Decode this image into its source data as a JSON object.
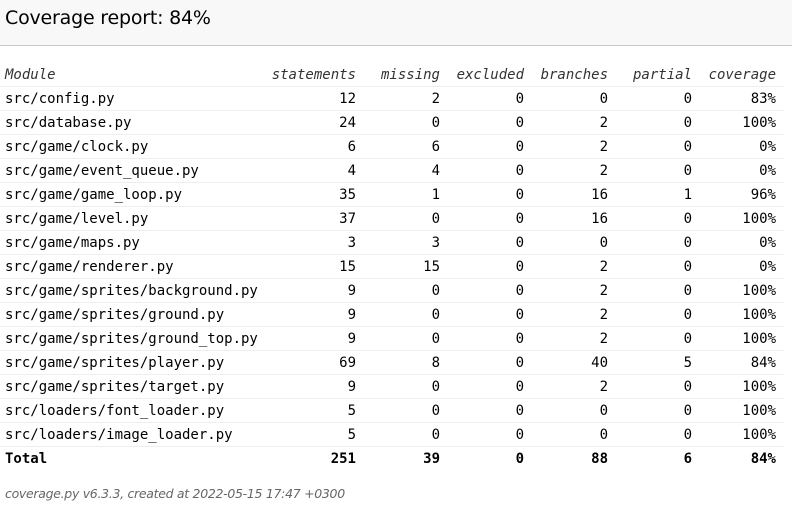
{
  "header": {
    "title": "Coverage report: 84%"
  },
  "table": {
    "columns": [
      "Module",
      "statements",
      "missing",
      "excluded",
      "branches",
      "partial",
      "coverage"
    ],
    "rows": [
      {
        "module": "src/config.py",
        "statements": "12",
        "missing": "2",
        "excluded": "0",
        "branches": "0",
        "partial": "0",
        "coverage": "83%"
      },
      {
        "module": "src/database.py",
        "statements": "24",
        "missing": "0",
        "excluded": "0",
        "branches": "2",
        "partial": "0",
        "coverage": "100%"
      },
      {
        "module": "src/game/clock.py",
        "statements": "6",
        "missing": "6",
        "excluded": "0",
        "branches": "2",
        "partial": "0",
        "coverage": "0%"
      },
      {
        "module": "src/game/event_queue.py",
        "statements": "4",
        "missing": "4",
        "excluded": "0",
        "branches": "2",
        "partial": "0",
        "coverage": "0%"
      },
      {
        "module": "src/game/game_loop.py",
        "statements": "35",
        "missing": "1",
        "excluded": "0",
        "branches": "16",
        "partial": "1",
        "coverage": "96%"
      },
      {
        "module": "src/game/level.py",
        "statements": "37",
        "missing": "0",
        "excluded": "0",
        "branches": "16",
        "partial": "0",
        "coverage": "100%"
      },
      {
        "module": "src/game/maps.py",
        "statements": "3",
        "missing": "3",
        "excluded": "0",
        "branches": "0",
        "partial": "0",
        "coverage": "0%"
      },
      {
        "module": "src/game/renderer.py",
        "statements": "15",
        "missing": "15",
        "excluded": "0",
        "branches": "2",
        "partial": "0",
        "coverage": "0%"
      },
      {
        "module": "src/game/sprites/background.py",
        "statements": "9",
        "missing": "0",
        "excluded": "0",
        "branches": "2",
        "partial": "0",
        "coverage": "100%"
      },
      {
        "module": "src/game/sprites/ground.py",
        "statements": "9",
        "missing": "0",
        "excluded": "0",
        "branches": "2",
        "partial": "0",
        "coverage": "100%"
      },
      {
        "module": "src/game/sprites/ground_top.py",
        "statements": "9",
        "missing": "0",
        "excluded": "0",
        "branches": "2",
        "partial": "0",
        "coverage": "100%"
      },
      {
        "module": "src/game/sprites/player.py",
        "statements": "69",
        "missing": "8",
        "excluded": "0",
        "branches": "40",
        "partial": "5",
        "coverage": "84%"
      },
      {
        "module": "src/game/sprites/target.py",
        "statements": "9",
        "missing": "0",
        "excluded": "0",
        "branches": "2",
        "partial": "0",
        "coverage": "100%"
      },
      {
        "module": "src/loaders/font_loader.py",
        "statements": "5",
        "missing": "0",
        "excluded": "0",
        "branches": "0",
        "partial": "0",
        "coverage": "100%"
      },
      {
        "module": "src/loaders/image_loader.py",
        "statements": "5",
        "missing": "0",
        "excluded": "0",
        "branches": "0",
        "partial": "0",
        "coverage": "100%"
      }
    ],
    "total": {
      "module": "Total",
      "statements": "251",
      "missing": "39",
      "excluded": "0",
      "branches": "88",
      "partial": "6",
      "coverage": "84%"
    }
  },
  "footer": {
    "text": "coverage.py v6.3.3, created at 2022-05-15 17:47 +0300"
  }
}
